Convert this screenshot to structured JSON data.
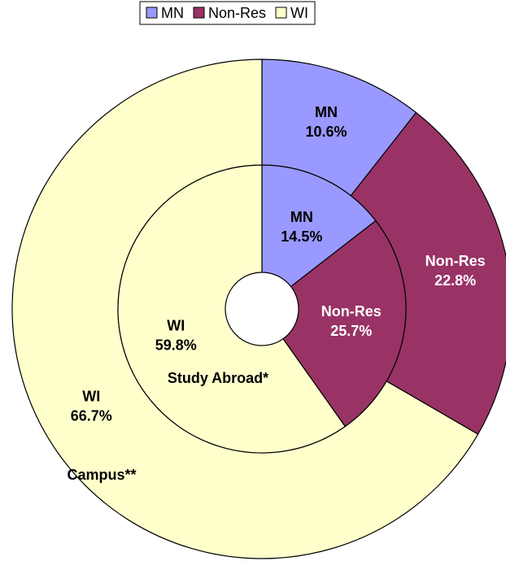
{
  "chart_data": {
    "type": "donut",
    "categories": [
      "MN",
      "Non-Res",
      "WI"
    ],
    "colors": [
      "#9999ff",
      "#993366",
      "#ffffcc"
    ],
    "label_colors": [
      "#000000",
      "#ffffff",
      "#000000"
    ],
    "series": [
      {
        "name": "Study Abroad*",
        "values": [
          14.5,
          25.7,
          59.8
        ],
        "value_labels": [
          "14.5%",
          "25.7%",
          "59.8%"
        ]
      },
      {
        "name": "Campus**",
        "values": [
          10.6,
          22.8,
          66.7
        ],
        "value_labels": [
          "10.6%",
          "22.8%",
          "66.7%"
        ]
      }
    ],
    "legend": "top"
  }
}
